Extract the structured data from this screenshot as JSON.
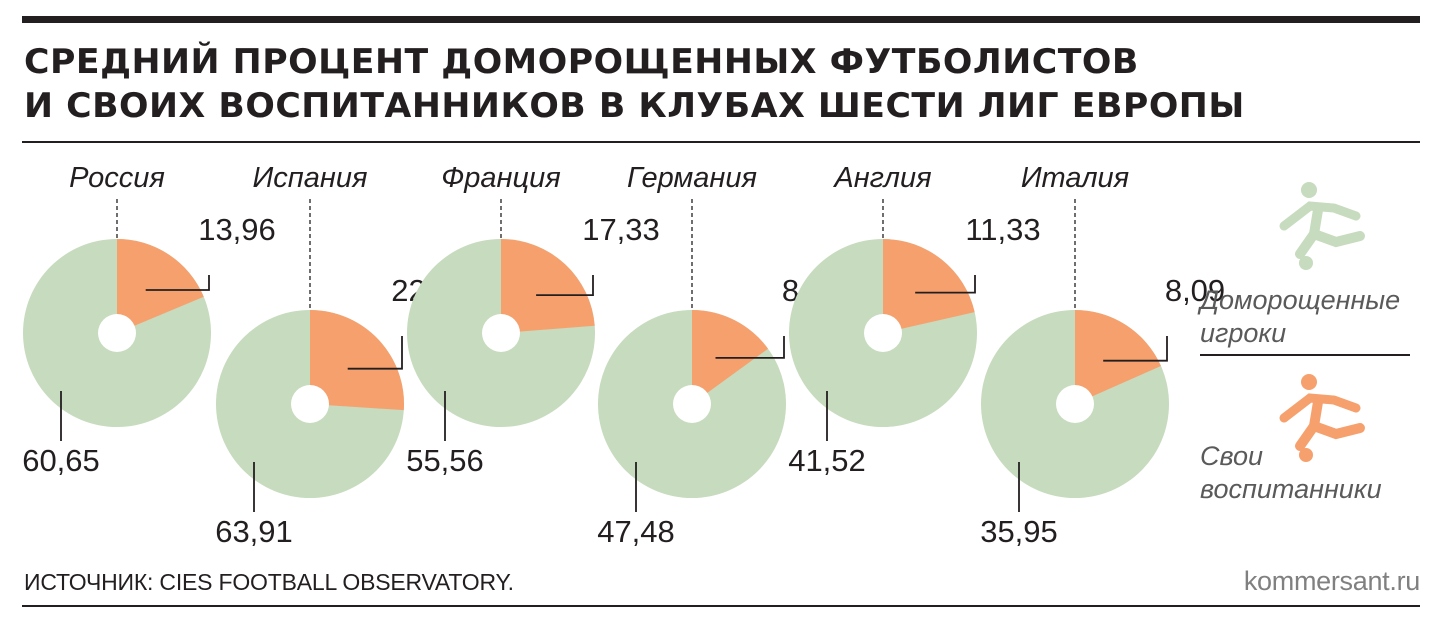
{
  "title_lines": [
    "СРЕДНИЙ ПРОЦЕНТ ДОМОРОЩЕННЫХ ФУТБОЛИСТОВ",
    "И СВОИХ ВОСПИТАННИКОВ В КЛУБАХ ШЕСТИ  ЛИГ ЕВРОПЫ"
  ],
  "source": "ИСТОЧНИК: CIES FOOTBALL OBSERVATORY.",
  "brand": "kommersant.ru",
  "colors": {
    "homegrown": "#c7dbbe",
    "own_academy": "#f6a06e",
    "ink": "#231f20"
  },
  "legend": {
    "homegrown": {
      "lines": [
        "Доморощенные",
        "игроки"
      ],
      "icon": "footballer-icon"
    },
    "own_academy": {
      "lines": [
        "Свои",
        "воспитанники"
      ],
      "icon": "footballer-icon"
    }
  },
  "chart_data": {
    "type": "pie",
    "series": [
      {
        "key": "homegrown",
        "legend_label": "Доморощенные игроки"
      },
      {
        "key": "own_academy",
        "legend_label": "Свои воспитанники"
      }
    ],
    "charts": [
      {
        "country": "Россия",
        "homegrown": "60,65",
        "own_academy": "13,96",
        "homegrown_value": 60.65,
        "own_academy_value": 13.96
      },
      {
        "country": "Испания",
        "homegrown": "63,91",
        "own_academy": "22,51",
        "homegrown_value": 63.91,
        "own_academy_value": 22.51
      },
      {
        "country": "Франция",
        "homegrown": "55,56",
        "own_academy": "17,33",
        "homegrown_value": 55.56,
        "own_academy_value": 17.33
      },
      {
        "country": "Германия",
        "homegrown": "47,48",
        "own_academy": "8,38",
        "homegrown_value": 47.48,
        "own_academy_value": 8.38
      },
      {
        "country": "Англия",
        "homegrown": "41,52",
        "own_academy": "11,33",
        "homegrown_value": 41.52,
        "own_academy_value": 11.33
      },
      {
        "country": "Италия",
        "homegrown": "35,95",
        "own_academy": "8,09",
        "homegrown_value": 35.95,
        "own_academy_value": 8.09
      }
    ]
  }
}
